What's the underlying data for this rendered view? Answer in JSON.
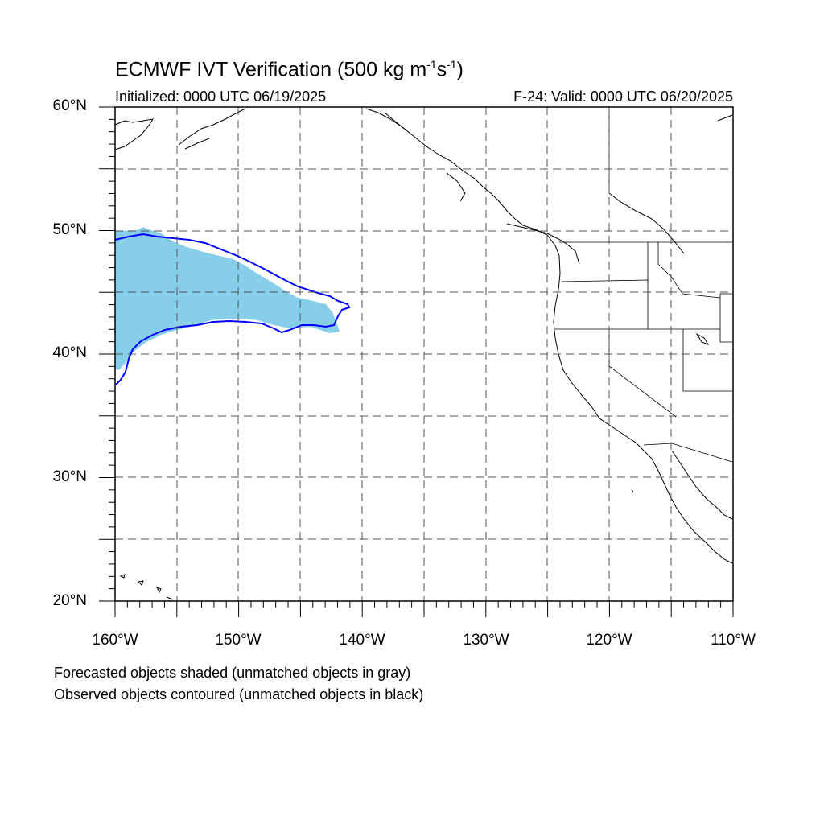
{
  "title": {
    "main": "ECMWF IVT Verification (500 kg m",
    "sup1": "-1",
    "mid": "s",
    "sup2": "-1",
    "end": ")"
  },
  "initialized": "Initialized: 0000 UTC 06/19/2025",
  "valid": "F-24: Valid: 0000 UTC 06/20/2025",
  "lat_labels": [
    "60°N",
    "50°N",
    "40°N",
    "30°N",
    "20°N"
  ],
  "lon_labels": [
    "160°W",
    "150°W",
    "140°W",
    "130°W",
    "120°W",
    "110°W"
  ],
  "notes": [
    "Forecasted objects shaded (unmatched objects in gray)",
    "Observed objects contoured (unmatched objects in black)"
  ],
  "map": {
    "lat_range": [
      20,
      60
    ],
    "lon_range": [
      -160,
      -110
    ],
    "grid_style": "dashed",
    "forecast_fill_color": "#87ceeb",
    "observed_contour_color": "#0000ff",
    "coastline_color": "#000000"
  }
}
